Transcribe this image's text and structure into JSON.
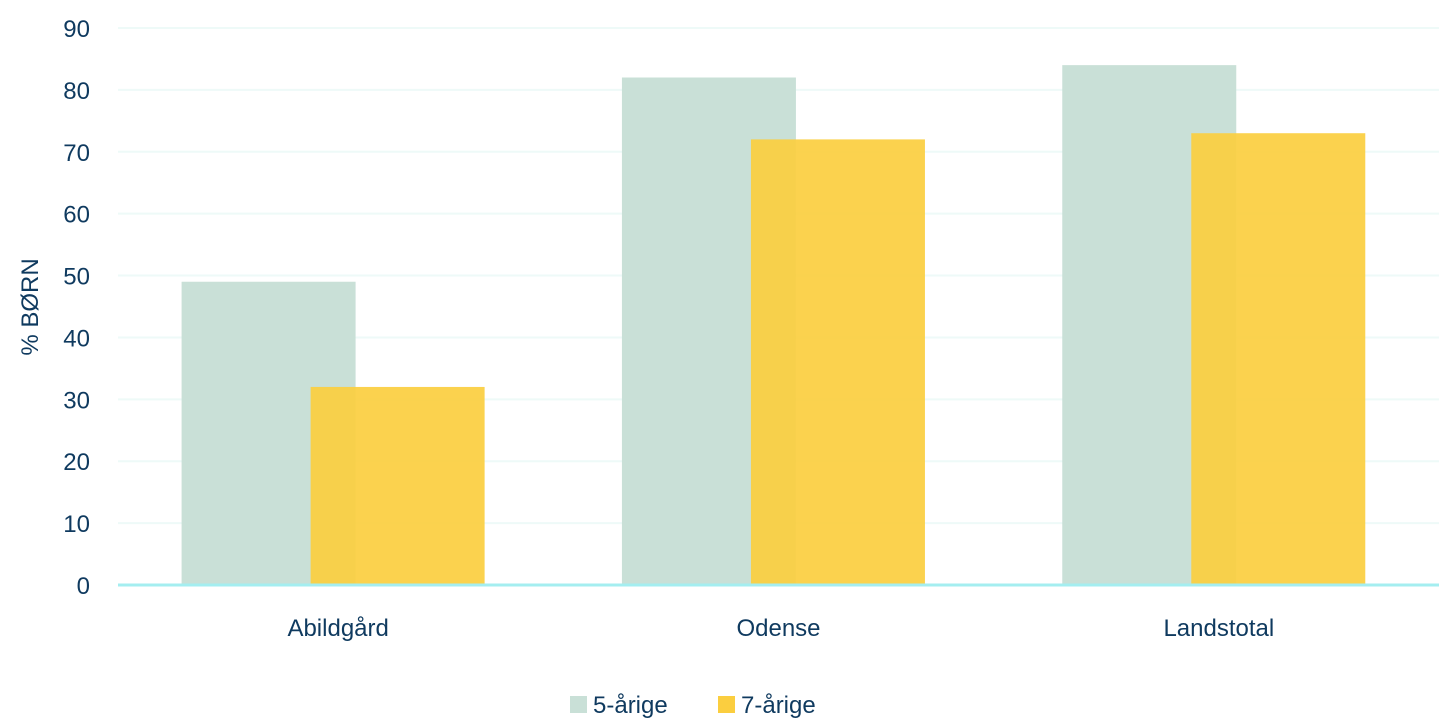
{
  "chart_data": {
    "type": "bar",
    "categories": [
      "Abildgård",
      "Odense",
      "Landstotal"
    ],
    "series": [
      {
        "name": "5-årige",
        "values": [
          49,
          82,
          84
        ],
        "color": "#c9e0d7"
      },
      {
        "name": "7-årige",
        "values": [
          32,
          72,
          73
        ],
        "color": "#fbce3f"
      }
    ],
    "ylabel": "% BØRN",
    "ylim": [
      0,
      90
    ],
    "yticks": [
      "0",
      "10",
      "20",
      "30",
      "40",
      "50",
      "60",
      "70",
      "80",
      "90"
    ],
    "grid": true,
    "legend_position": "bottom-center",
    "colors": {
      "text": "#0f3a5f",
      "gridline": "#eefaf8",
      "baseline": "#a4eef0"
    }
  }
}
